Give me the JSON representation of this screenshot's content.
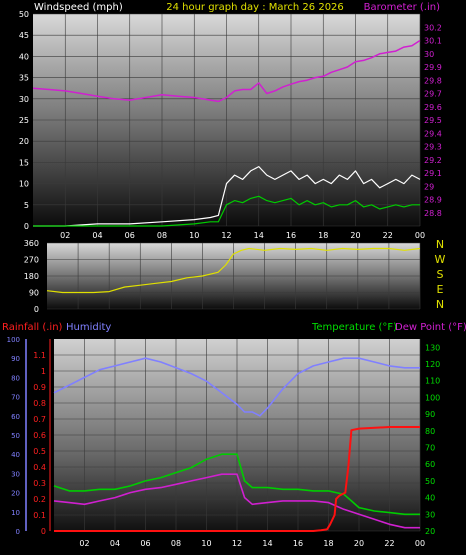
{
  "chart_data": [
    {
      "type": "line",
      "panel": "wind-barometer",
      "title": "24 hour graph day : March 26 2026",
      "ylabel_left": "Windspeed (mph)",
      "ylabel_right": "Barometer (.in)",
      "ylim_left": [
        0,
        50
      ],
      "ylim_right": [
        28.7,
        30.3
      ],
      "yticks_left": [
        "0",
        "5",
        "10",
        "15",
        "20",
        "25",
        "30",
        "35",
        "40",
        "45",
        "50"
      ],
      "yticks_right": [
        "28.8",
        "28.9",
        "29",
        "29.1",
        "29.2",
        "29.3",
        "29.4",
        "29.5",
        "29.6",
        "29.7",
        "29.8",
        "29.9",
        "30",
        "30.1",
        "30.2"
      ],
      "x_unit": "hour",
      "xlim": [
        0,
        24
      ],
      "xticks": [
        "02",
        "04",
        "06",
        "08",
        "10",
        "12",
        "14",
        "16",
        "18",
        "20",
        "22",
        "00"
      ],
      "series": [
        {
          "role": "barometer",
          "color": "#d020d0",
          "x": [
            0,
            1,
            2,
            3,
            4,
            5,
            6,
            7,
            8,
            9,
            10,
            11,
            11.5,
            12,
            12.5,
            13,
            13.5,
            14,
            14.5,
            15,
            15.5,
            16,
            16.5,
            17,
            17.5,
            18,
            18.5,
            19,
            19.5,
            20,
            20.5,
            21,
            21.5,
            22,
            22.5,
            23,
            23.5,
            24
          ],
          "y": [
            29.74,
            29.73,
            29.72,
            29.7,
            29.68,
            29.66,
            29.65,
            29.67,
            29.69,
            29.68,
            29.67,
            29.65,
            29.64,
            29.67,
            29.72,
            29.73,
            29.73,
            29.78,
            29.7,
            29.72,
            29.75,
            29.77,
            29.79,
            29.8,
            29.82,
            29.83,
            29.86,
            29.88,
            29.9,
            29.94,
            29.95,
            29.97,
            30.0,
            30.01,
            30.02,
            30.05,
            30.06,
            30.1
          ]
        },
        {
          "role": "gust",
          "color": "#ffffff",
          "x": [
            0,
            2,
            4,
            6,
            8,
            10,
            11,
            11.5,
            12,
            12.5,
            13,
            13.5,
            14,
            14.5,
            15,
            15.5,
            16,
            16.5,
            17,
            17.5,
            18,
            18.5,
            19,
            19.5,
            20,
            20.5,
            21,
            21.5,
            22,
            22.5,
            23,
            23.5,
            24
          ],
          "y": [
            0,
            0,
            0.5,
            0.5,
            1,
            1.5,
            2,
            2.5,
            10,
            12,
            11,
            13,
            14,
            12,
            11,
            12,
            13,
            11,
            12,
            10,
            11,
            10,
            12,
            11,
            13,
            10,
            11,
            9,
            10,
            11,
            10,
            12,
            11
          ]
        },
        {
          "role": "average",
          "color": "#00cc00",
          "x": [
            0,
            2,
            4,
            6,
            8,
            10,
            11,
            11.5,
            12,
            12.5,
            13,
            13.5,
            14,
            14.5,
            15,
            15.5,
            16,
            16.5,
            17,
            17.5,
            18,
            18.5,
            19,
            19.5,
            20,
            20.5,
            21,
            21.5,
            22,
            22.5,
            23,
            23.5,
            24
          ],
          "y": [
            0,
            0,
            0,
            0,
            0,
            0.5,
            1,
            1,
            5,
            6,
            5.5,
            6.5,
            7,
            6,
            5.5,
            6,
            6.5,
            5,
            6,
            5,
            5.5,
            4.5,
            5,
            5,
            6,
            4.5,
            5,
            4,
            4.5,
            5,
            4.5,
            5,
            5
          ]
        }
      ]
    },
    {
      "type": "line",
      "panel": "wind-direction",
      "ylabel_right": "N W S E N",
      "ylim": [
        0,
        360
      ],
      "yticks": [
        "0",
        "90",
        "180",
        "270",
        "360"
      ],
      "x_unit": "hour",
      "xlim": [
        0,
        24
      ],
      "series": [
        {
          "role": "direction",
          "color": "#e0e000",
          "x": [
            0,
            1,
            2,
            3,
            4,
            5,
            6,
            7,
            8,
            9,
            10,
            11,
            11.5,
            12,
            12.5,
            13,
            14,
            15,
            16,
            17,
            18,
            19,
            20,
            21,
            22,
            23,
            24
          ],
          "y": [
            100,
            90,
            90,
            90,
            95,
            120,
            130,
            140,
            150,
            170,
            180,
            200,
            240,
            300,
            320,
            330,
            320,
            330,
            325,
            330,
            320,
            330,
            325,
            330,
            330,
            320,
            330
          ]
        }
      ]
    },
    {
      "type": "line",
      "panel": "rain-humidity-temperature",
      "ylabel_left": "Rainfall (.in)",
      "ylabel_left2": "Humidity",
      "ylabel_right": "Temperature (°F)",
      "ylabel_right2": "Dew Point (°F)",
      "ylim_rain": [
        0,
        1.2
      ],
      "yticks_rain": [
        "0",
        "0.1",
        "0.2",
        "0.3",
        "0.4",
        "0.5",
        "0.6",
        "0.7",
        "0.8",
        "0.9",
        "1",
        "1.1"
      ],
      "ylim_humidity": [
        0,
        100
      ],
      "yticks_humidity": [
        "0",
        "10",
        "20",
        "30",
        "40",
        "50",
        "60",
        "70",
        "80",
        "90",
        "100"
      ],
      "ylim_temp": [
        20,
        135
      ],
      "yticks_temp": [
        "20",
        "30",
        "40",
        "50",
        "60",
        "70",
        "80",
        "90",
        "100",
        "110",
        "120",
        "130"
      ],
      "x_unit": "hour",
      "xlim": [
        0,
        24
      ],
      "xticks": [
        "02",
        "04",
        "06",
        "08",
        "10",
        "12",
        "14",
        "16",
        "18",
        "20",
        "22",
        "00"
      ],
      "series": [
        {
          "role": "humidity",
          "color": "#8080ff",
          "axis": "humidity",
          "x": [
            0,
            1,
            2,
            3,
            4,
            5,
            6,
            7,
            8,
            9,
            10,
            11,
            12,
            12.5,
            13,
            13.5,
            14,
            15,
            16,
            17,
            18,
            19,
            20,
            21,
            22,
            23,
            24
          ],
          "y": [
            72,
            76,
            80,
            84,
            86,
            88,
            90,
            88,
            85,
            82,
            78,
            72,
            66,
            62,
            62,
            60,
            64,
            74,
            82,
            86,
            88,
            90,
            90,
            88,
            86,
            85,
            85
          ]
        },
        {
          "role": "temperature",
          "color": "#00cc00",
          "axis": "temp",
          "x": [
            0,
            1,
            2,
            3,
            4,
            5,
            6,
            7,
            8,
            9,
            10,
            11,
            11.5,
            12,
            12.5,
            13,
            14,
            15,
            16,
            17,
            18,
            18.5,
            19,
            19.5,
            20,
            21,
            22,
            23,
            24
          ],
          "y": [
            47,
            44,
            44,
            45,
            45,
            47,
            50,
            52,
            55,
            58,
            63,
            66,
            66,
            66,
            50,
            46,
            46,
            45,
            45,
            44,
            44,
            43,
            42,
            38,
            34,
            32,
            31,
            30,
            30
          ]
        },
        {
          "role": "dewpoint",
          "color": "#d020d0",
          "axis": "temp",
          "x": [
            0,
            1,
            2,
            3,
            4,
            5,
            6,
            7,
            8,
            9,
            10,
            11,
            12,
            12.5,
            13,
            14,
            15,
            16,
            17,
            18,
            19,
            20,
            21,
            22,
            23,
            24
          ],
          "y": [
            38,
            37,
            36,
            38,
            40,
            43,
            45,
            46,
            48,
            50,
            52,
            54,
            54,
            40,
            36,
            37,
            38,
            38,
            38,
            37,
            33,
            30,
            27,
            24,
            22,
            22
          ]
        },
        {
          "role": "rainfall",
          "color": "#ff1010",
          "axis": "rain",
          "x": [
            0,
            17,
            17.5,
            17.9,
            18.1,
            18.4,
            18.5,
            18.7,
            19.1,
            19.3,
            19.5,
            20,
            22,
            23.5,
            24
          ],
          "y": [
            0,
            0,
            0.005,
            0.01,
            0.04,
            0.1,
            0.2,
            0.22,
            0.24,
            0.4,
            0.63,
            0.64,
            0.65,
            0.65,
            0.65
          ]
        }
      ]
    }
  ]
}
